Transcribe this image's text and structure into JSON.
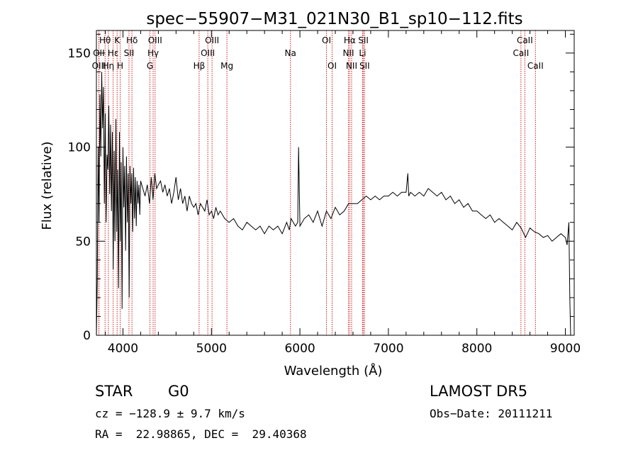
{
  "chart_data": {
    "type": "line",
    "title": "spec−55907−M31_021N30_B1_sp10−112.fits",
    "xlabel": "Wavelength (Å)",
    "ylabel": "Flux (relative)",
    "xlim": [
      3700,
      9100
    ],
    "ylim": [
      0,
      162
    ],
    "x_ticks": [
      4000,
      5000,
      6000,
      7000,
      8000,
      9000
    ],
    "y_ticks": [
      0,
      50,
      100,
      150
    ],
    "grid": false,
    "legend": "none",
    "line_color": "#000000",
    "marker_color": "#cc2222",
    "spectral_lines": [
      {
        "label": "Hθ",
        "wavelength": 3798,
        "row": 0
      },
      {
        "label": "OII",
        "wavelength": 3727,
        "row": 1
      },
      {
        "label": "OIII",
        "wavelength": 3729,
        "row": 2
      },
      {
        "label": "Hη",
        "wavelength": 3835,
        "row": 2
      },
      {
        "label": "K",
        "wavelength": 3934,
        "row": 0
      },
      {
        "label": "Hε",
        "wavelength": 3889,
        "row": 1
      },
      {
        "label": "H",
        "wavelength": 3969,
        "row": 2
      },
      {
        "label": "SII",
        "wavelength": 4068,
        "row": 1
      },
      {
        "label": "Hδ",
        "wavelength": 4102,
        "row": 0
      },
      {
        "label": "OIII",
        "wavelength": 4363,
        "row": 0
      },
      {
        "label": "Hγ",
        "wavelength": 4341,
        "row": 1
      },
      {
        "label": "G",
        "wavelength": 4305,
        "row": 2
      },
      {
        "label": "Hβ",
        "wavelength": 4861,
        "row": 2
      },
      {
        "label": "OIII",
        "wavelength": 5007,
        "row": 0
      },
      {
        "label": "OIII",
        "wavelength": 4959,
        "row": 1
      },
      {
        "label": "Mg",
        "wavelength": 5175,
        "row": 2
      },
      {
        "label": "Na",
        "wavelength": 5893,
        "row": 1
      },
      {
        "label": "OI",
        "wavelength": 6300,
        "row": 0
      },
      {
        "label": "OI",
        "wavelength": 6364,
        "row": 2
      },
      {
        "label": "Hα",
        "wavelength": 6563,
        "row": 0
      },
      {
        "label": "NII",
        "wavelength": 6548,
        "row": 1
      },
      {
        "label": "NII",
        "wavelength": 6584,
        "row": 2
      },
      {
        "label": "SII",
        "wavelength": 6717,
        "row": 0
      },
      {
        "label": "Li",
        "wavelength": 6708,
        "row": 1
      },
      {
        "label": "SII",
        "wavelength": 6731,
        "row": 2
      },
      {
        "label": "CaII",
        "wavelength": 8542,
        "row": 0
      },
      {
        "label": "CaII",
        "wavelength": 8498,
        "row": 1
      },
      {
        "label": "CaII",
        "wavelength": 8662,
        "row": 2
      }
    ],
    "series": [
      {
        "x": [
          3700,
          3710,
          3720,
          3730,
          3740,
          3750,
          3760,
          3770,
          3780,
          3790,
          3800,
          3810,
          3820,
          3830,
          3840,
          3850,
          3860,
          3870,
          3880,
          3890,
          3900,
          3910,
          3920,
          3930,
          3940,
          3950,
          3960,
          3970,
          3980,
          3990,
          4000,
          4010,
          4020,
          4030,
          4040,
          4050,
          4060,
          4070,
          4080,
          4090,
          4100,
          4110,
          4120,
          4130,
          4140,
          4150,
          4160,
          4170,
          4180,
          4190,
          4200,
          4225,
          4250,
          4275,
          4300,
          4320,
          4340,
          4360,
          4380,
          4400,
          4425,
          4450,
          4475,
          4500,
          4525,
          4550,
          4575,
          4600,
          4625,
          4650,
          4675,
          4700,
          4725,
          4750,
          4775,
          4800,
          4825,
          4850,
          4875,
          4900,
          4925,
          4950,
          4975,
          5000,
          5025,
          5050,
          5075,
          5100,
          5150,
          5200,
          5250,
          5300,
          5350,
          5400,
          5450,
          5500,
          5550,
          5600,
          5650,
          5700,
          5750,
          5800,
          5850,
          5880,
          5900,
          5950,
          5975,
          5985,
          6000,
          6050,
          6100,
          6150,
          6200,
          6250,
          6300,
          6350,
          6400,
          6450,
          6500,
          6550,
          6600,
          6650,
          6700,
          6750,
          6800,
          6850,
          6900,
          6950,
          7000,
          7050,
          7100,
          7150,
          7200,
          7220,
          7230,
          7250,
          7300,
          7350,
          7400,
          7450,
          7500,
          7550,
          7600,
          7650,
          7700,
          7750,
          7800,
          7850,
          7900,
          7950,
          8000,
          8050,
          8100,
          8150,
          8200,
          8250,
          8300,
          8350,
          8400,
          8450,
          8500,
          8550,
          8600,
          8650,
          8700,
          8750,
          8800,
          8850,
          8900,
          8950,
          9000,
          9020,
          9040,
          9050,
          9060
        ],
        "y": [
          0,
          28,
          100,
          60,
          128,
          95,
          140,
          110,
          132,
          70,
          118,
          60,
          96,
          88,
          122,
          75,
          112,
          66,
          108,
          35,
          98,
          50,
          115,
          55,
          88,
          25,
          108,
          50,
          92,
          14,
          100,
          68,
          90,
          45,
          95,
          60,
          86,
          20,
          90,
          70,
          86,
          55,
          89,
          62,
          84,
          58,
          82,
          70,
          80,
          64,
          82,
          78,
          74,
          80,
          70,
          84,
          72,
          86,
          78,
          80,
          82,
          76,
          80,
          74,
          78,
          70,
          76,
          84,
          72,
          78,
          70,
          74,
          66,
          74,
          70,
          68,
          70,
          64,
          70,
          68,
          66,
          72,
          64,
          66,
          62,
          68,
          64,
          66,
          62,
          60,
          62,
          58,
          56,
          60,
          58,
          56,
          58,
          54,
          58,
          56,
          58,
          54,
          60,
          56,
          62,
          58,
          60,
          100,
          58,
          62,
          64,
          60,
          66,
          58,
          66,
          62,
          68,
          64,
          66,
          70,
          70,
          70,
          72,
          74,
          72,
          74,
          72,
          74,
          74,
          76,
          74,
          76,
          76,
          86,
          74,
          76,
          74,
          76,
          74,
          78,
          76,
          74,
          76,
          72,
          74,
          70,
          72,
          68,
          70,
          66,
          66,
          64,
          62,
          64,
          60,
          62,
          60,
          58,
          56,
          60,
          57,
          52,
          57,
          55,
          54,
          52,
          53,
          50,
          52,
          54,
          52,
          48,
          60,
          20,
          0
        ]
      }
    ]
  },
  "info": {
    "object_class": "STAR",
    "subclass": "G0",
    "survey": "LAMOST DR5",
    "redshift_text": "cz = −128.9 ± 9.7 km/s",
    "obs_date": "Obs−Date: 20111211",
    "coords": "RA =  22.98865, DEC =  29.40368"
  }
}
